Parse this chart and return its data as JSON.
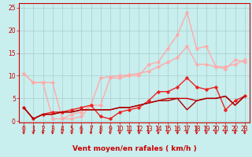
{
  "background_color": "#c8eeee",
  "grid_color": "#aacccc",
  "xlabel": "Vent moyen/en rafales ( km/h )",
  "xlabel_color": "#cc0000",
  "xlabel_fontsize": 6.5,
  "ytick_vals": [
    0,
    5,
    10,
    15,
    20,
    25
  ],
  "xtick_vals": [
    0,
    1,
    2,
    3,
    4,
    5,
    6,
    7,
    8,
    9,
    10,
    11,
    12,
    13,
    14,
    15,
    16,
    17,
    18,
    19,
    20,
    21,
    22,
    23
  ],
  "xlim": [
    -0.5,
    23.5
  ],
  "ylim": [
    -0.3,
    26.0
  ],
  "tick_color": "#cc0000",
  "tick_fontsize": 5.5,
  "lines": [
    {
      "x": [
        0,
        1,
        2,
        3,
        4,
        5,
        6,
        7,
        8,
        9,
        10,
        11,
        12,
        13,
        14,
        15,
        16,
        17,
        18,
        19,
        20,
        21,
        22,
        23
      ],
      "y": [
        10.5,
        8.5,
        8.5,
        0.5,
        0.5,
        0.5,
        1.0,
        3.5,
        3.5,
        9.5,
        9.5,
        10.0,
        10.0,
        12.5,
        13.0,
        16.0,
        19.0,
        24.0,
        16.0,
        16.5,
        12.0,
        11.5,
        13.5,
        13.0
      ],
      "color": "#ffaaaa",
      "lw": 1.0,
      "marker": "D",
      "markersize": 1.8
    },
    {
      "x": [
        0,
        1,
        2,
        3,
        4,
        5,
        6,
        7,
        8,
        9,
        10,
        11,
        12,
        13,
        14,
        15,
        16,
        17,
        18,
        19,
        20,
        21,
        22,
        23
      ],
      "y": [
        10.5,
        8.5,
        8.5,
        8.5,
        0.5,
        1.5,
        2.0,
        3.5,
        9.5,
        9.8,
        10.0,
        10.2,
        10.5,
        11.0,
        12.0,
        13.0,
        14.0,
        16.5,
        12.5,
        12.5,
        12.0,
        12.0,
        12.5,
        13.5
      ],
      "color": "#ffaaaa",
      "lw": 1.0,
      "marker": "D",
      "markersize": 1.8
    },
    {
      "x": [
        0,
        1,
        2,
        3,
        4,
        5,
        6,
        7,
        8,
        9,
        10,
        11,
        12,
        13,
        14,
        15,
        16,
        17,
        18,
        19,
        20,
        21,
        22,
        23
      ],
      "y": [
        3.0,
        0.5,
        1.5,
        2.0,
        2.0,
        2.5,
        3.0,
        3.5,
        1.0,
        0.5,
        2.0,
        2.5,
        3.0,
        4.5,
        6.5,
        6.5,
        7.5,
        9.5,
        7.5,
        7.0,
        7.5,
        2.5,
        4.5,
        5.5
      ],
      "color": "#ee2222",
      "lw": 1.0,
      "marker": "D",
      "markersize": 1.8
    },
    {
      "x": [
        0,
        1,
        2,
        3,
        4,
        5,
        6,
        7,
        8,
        9,
        10,
        11,
        12,
        13,
        14,
        15,
        16,
        17,
        18,
        19,
        20,
        21,
        22,
        23
      ],
      "y": [
        3.0,
        0.5,
        1.5,
        1.5,
        2.0,
        2.0,
        2.5,
        2.5,
        2.5,
        2.5,
        3.0,
        3.0,
        3.5,
        4.0,
        4.5,
        5.0,
        5.0,
        5.0,
        4.5,
        5.0,
        5.0,
        5.5,
        3.5,
        5.5
      ],
      "color": "#cc0000",
      "lw": 1.0,
      "marker": null,
      "markersize": 0
    },
    {
      "x": [
        0,
        1,
        2,
        3,
        4,
        5,
        6,
        7,
        8,
        9,
        10,
        11,
        12,
        13,
        14,
        15,
        16,
        17,
        18,
        19,
        20,
        21,
        22,
        23
      ],
      "y": [
        3.0,
        0.5,
        1.5,
        1.5,
        2.0,
        2.0,
        2.5,
        2.5,
        2.5,
        2.5,
        3.0,
        3.0,
        3.5,
        4.0,
        4.5,
        4.5,
        5.0,
        2.5,
        4.5,
        5.0,
        5.0,
        5.5,
        3.5,
        5.5
      ],
      "color": "#aa0000",
      "lw": 1.0,
      "marker": null,
      "markersize": 0
    }
  ],
  "arrow_color": "#cc0000",
  "spine_color": "#cc0000"
}
